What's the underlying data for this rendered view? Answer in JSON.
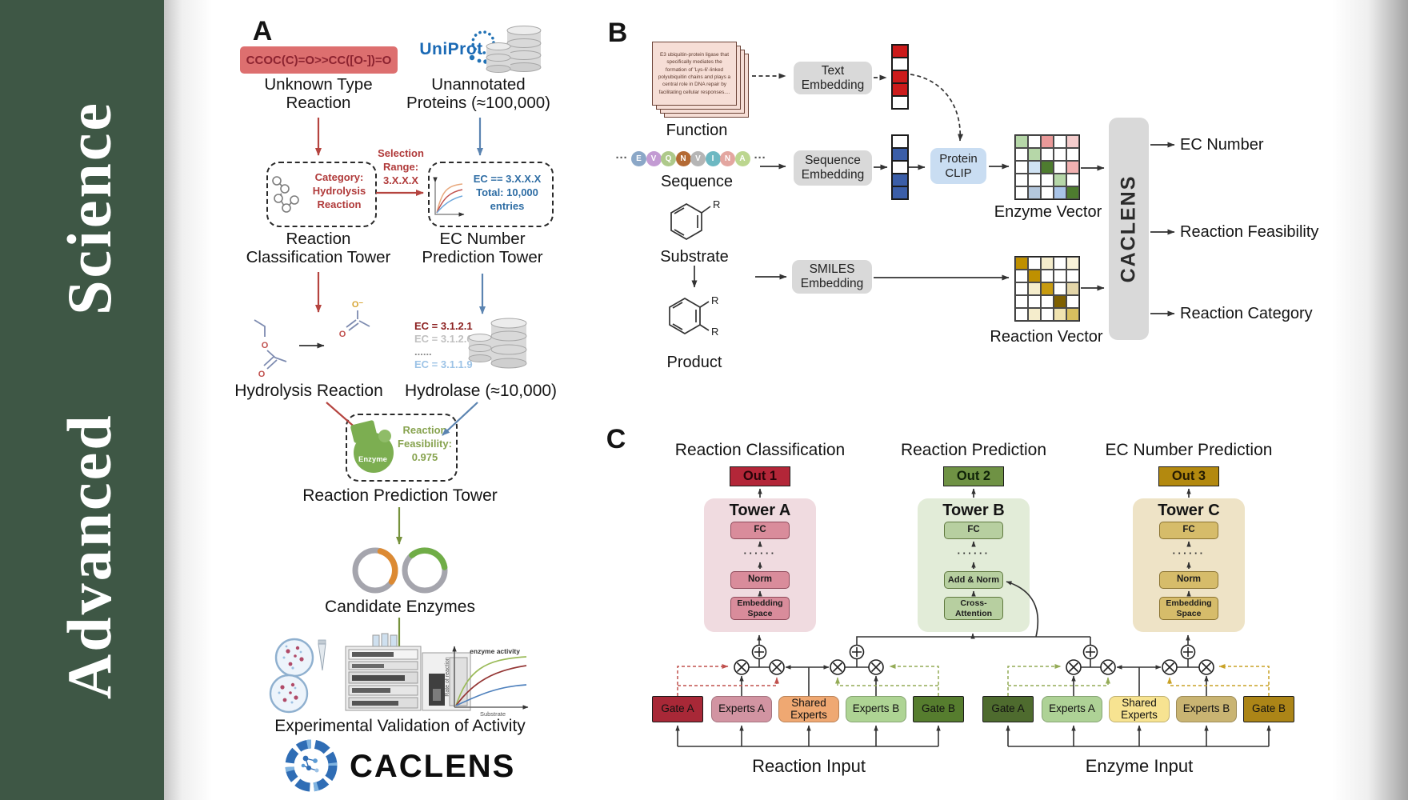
{
  "journal": {
    "name": "Advanced Science",
    "bar_color": "#3e5745"
  },
  "panelA": {
    "label": "A",
    "smiles": "CCOC(C)=O>>CC([O-])=O",
    "unknown_reaction": "Unknown Type\nReaction",
    "uniprot": "UniProt",
    "unannotated_proteins": "Unannotated\nProteins (≈100,000)",
    "selection_range": "Selection\nRange:\n3.X.X.X",
    "category_box": "Category:\nHydrolysis\nReaction",
    "ec_filter_box": "EC == 3.X.X.X\nTotal: 10,000\nentries",
    "classification_tower": "Reaction\nClassification Tower",
    "ec_prediction_tower": "EC Number\nPrediction Tower",
    "hydrolysis_reaction": "Hydrolysis Reaction",
    "ec_list": [
      {
        "text": "EC = 3.1.2.1",
        "color": "#8b1f1f"
      },
      {
        "text": "EC = 3.1.2.6",
        "color": "#c0c0c0"
      },
      {
        "text": "......",
        "color": "#8c8c8c"
      },
      {
        "text": "EC = 3.1.1.9",
        "color": "#9dc3e6"
      }
    ],
    "hydrolase": "Hydrolase (≈10,000)",
    "enzyme_icon_label": "Enzyme",
    "feasibility_box": "Reaction\nFeasibility:\n0.975",
    "prediction_tower": "Reaction Prediction Tower",
    "candidate_enzymes": "Candidate Enzymes",
    "activity_plot": {
      "curve_label": "enzyme activity",
      "ylabel": "Rate of reaction",
      "xlabel": "Substrate"
    },
    "validation": "Experimental Validation of Activity",
    "brand": "CACLENS"
  },
  "panelB": {
    "label": "B",
    "function_card_text": "E3 ubiquitin-protein ligase that specifically mediates the formation of 'Lys-6'-linked polyubiquitin chains and plays a central role in DNA repair by facilitating cellular responses....",
    "function_label": "Function",
    "sequence_dots": "···",
    "sequence_residues": [
      {
        "letter": "E",
        "color": "#8ba7c7"
      },
      {
        "letter": "V",
        "color": "#c39bd3"
      },
      {
        "letter": "Q",
        "color": "#aec98a"
      },
      {
        "letter": "N",
        "color": "#b46a34"
      },
      {
        "letter": "V",
        "color": "#b5b5b5"
      },
      {
        "letter": "I",
        "color": "#6db8c2"
      },
      {
        "letter": "N",
        "color": "#e3a6a0"
      },
      {
        "letter": "A",
        "color": "#bcd68f"
      }
    ],
    "sequence_label": "Sequence",
    "substrate_label": "Substrate",
    "r_group": "R",
    "product_label": "Product",
    "text_embedding": "Text\nEmbedding",
    "sequence_embedding": "Sequence\nEmbedding",
    "smiles_embedding": "SMILES\nEmbedding",
    "protein_clip": "Protein\nCLIP",
    "text_vector": [
      "#cc1b1b",
      "#ffffff",
      "#cc1b1b",
      "#cc1b1b",
      "#ffffff"
    ],
    "sequence_vector": [
      "#ffffff",
      "#3b5ea8",
      "#ffffff",
      "#3b5ea8",
      "#3b5ea8"
    ],
    "enzyme_matrix": [
      [
        "#b6d7a8",
        "#ffffff",
        "#ea9999",
        "#ffffff",
        "#f4cccc"
      ],
      [
        "#ffffff",
        "#b6d7a8",
        "#ffffff",
        "#ffffff",
        "#ffffff"
      ],
      [
        "#ffffff",
        "#cfe2f3",
        "#4e7c2f",
        "#ffffff",
        "#f1b0b0"
      ],
      [
        "#ffffff",
        "#ffffff",
        "#ffffff",
        "#b6d7a8",
        "#ffffff"
      ],
      [
        "#ffffff",
        "#b4c7dc",
        "#ffffff",
        "#a9c4e8",
        "#4e7c2f"
      ]
    ],
    "reaction_matrix": [
      [
        "#bf9000",
        "#ffffff",
        "#f5edcc",
        "#ffffff",
        "#f9f2d8"
      ],
      [
        "#ffffff",
        "#bf9000",
        "#ffffff",
        "#ffffff",
        "#ffffff"
      ],
      [
        "#ffffff",
        "#f5edcc",
        "#c89b10",
        "#ffffff",
        "#e3d5a8"
      ],
      [
        "#ffffff",
        "#ffffff",
        "#ffffff",
        "#7f6000",
        "#ffffff"
      ],
      [
        "#ffffff",
        "#f5edcc",
        "#ffffff",
        "#f0e3b0",
        "#d8bf5f"
      ]
    ],
    "enzyme_vector_label": "Enzyme Vector",
    "reaction_vector_label": "Reaction Vector",
    "caclens": "CACLENS",
    "outputs": [
      "EC Number",
      "Reaction Feasibility",
      "Reaction Category"
    ]
  },
  "panelC": {
    "label": "C",
    "columns": [
      {
        "title": "Reaction Classification",
        "out": "Out 1",
        "tower": "Tower A",
        "top_block": "FC",
        "dots": "······",
        "mid_block": "Norm",
        "bottom_block": "Embedding\nSpace",
        "out_color": "#b32638",
        "panel_color": "#f0dbe0",
        "block_color": "#d98c9b",
        "block_border": "#8f4a5a"
      },
      {
        "title": "Reaction Prediction",
        "out": "Out 2",
        "tower": "Tower B",
        "top_block": "FC",
        "dots": "······",
        "mid_block": "Add & Norm",
        "bottom_block": "Cross-\nAttention",
        "out_color": "#6f9244",
        "panel_color": "#e2ecd8",
        "block_color": "#b7cfa0",
        "block_border": "#60793f"
      },
      {
        "title": "EC Number Prediction",
        "out": "Out 3",
        "tower": "Tower C",
        "top_block": "FC",
        "dots": "······",
        "mid_block": "Norm",
        "bottom_block": "Embedding\nSpace",
        "out_color": "#b3890f",
        "panel_color": "#eee3c6",
        "block_color": "#d6bc6a",
        "block_border": "#8a7330"
      }
    ],
    "moe_groups": [
      {
        "label": "Reaction Input",
        "boxes": [
          {
            "text": "Gate A",
            "color": "#a82837",
            "type": "gate"
          },
          {
            "text": "Experts A",
            "color": "#d294a2",
            "type": "expert"
          },
          {
            "text": "Shared\nExperts",
            "color": "#efa872",
            "type": "expert"
          },
          {
            "text": "Experts B",
            "color": "#aed494",
            "type": "expert"
          },
          {
            "text": "Gate B",
            "color": "#567d2e",
            "type": "gate"
          }
        ]
      },
      {
        "label": "Enzyme Input",
        "boxes": [
          {
            "text": "Gate A",
            "color": "#4e6b2e",
            "type": "gate"
          },
          {
            "text": "Experts A",
            "color": "#aed296",
            "type": "expert"
          },
          {
            "text": "Shared\nExperts",
            "color": "#f7e391",
            "type": "expert"
          },
          {
            "text": "Experts B",
            "color": "#c9b472",
            "type": "expert"
          },
          {
            "text": "Gate B",
            "color": "#ac8517",
            "type": "gate"
          }
        ]
      }
    ]
  }
}
